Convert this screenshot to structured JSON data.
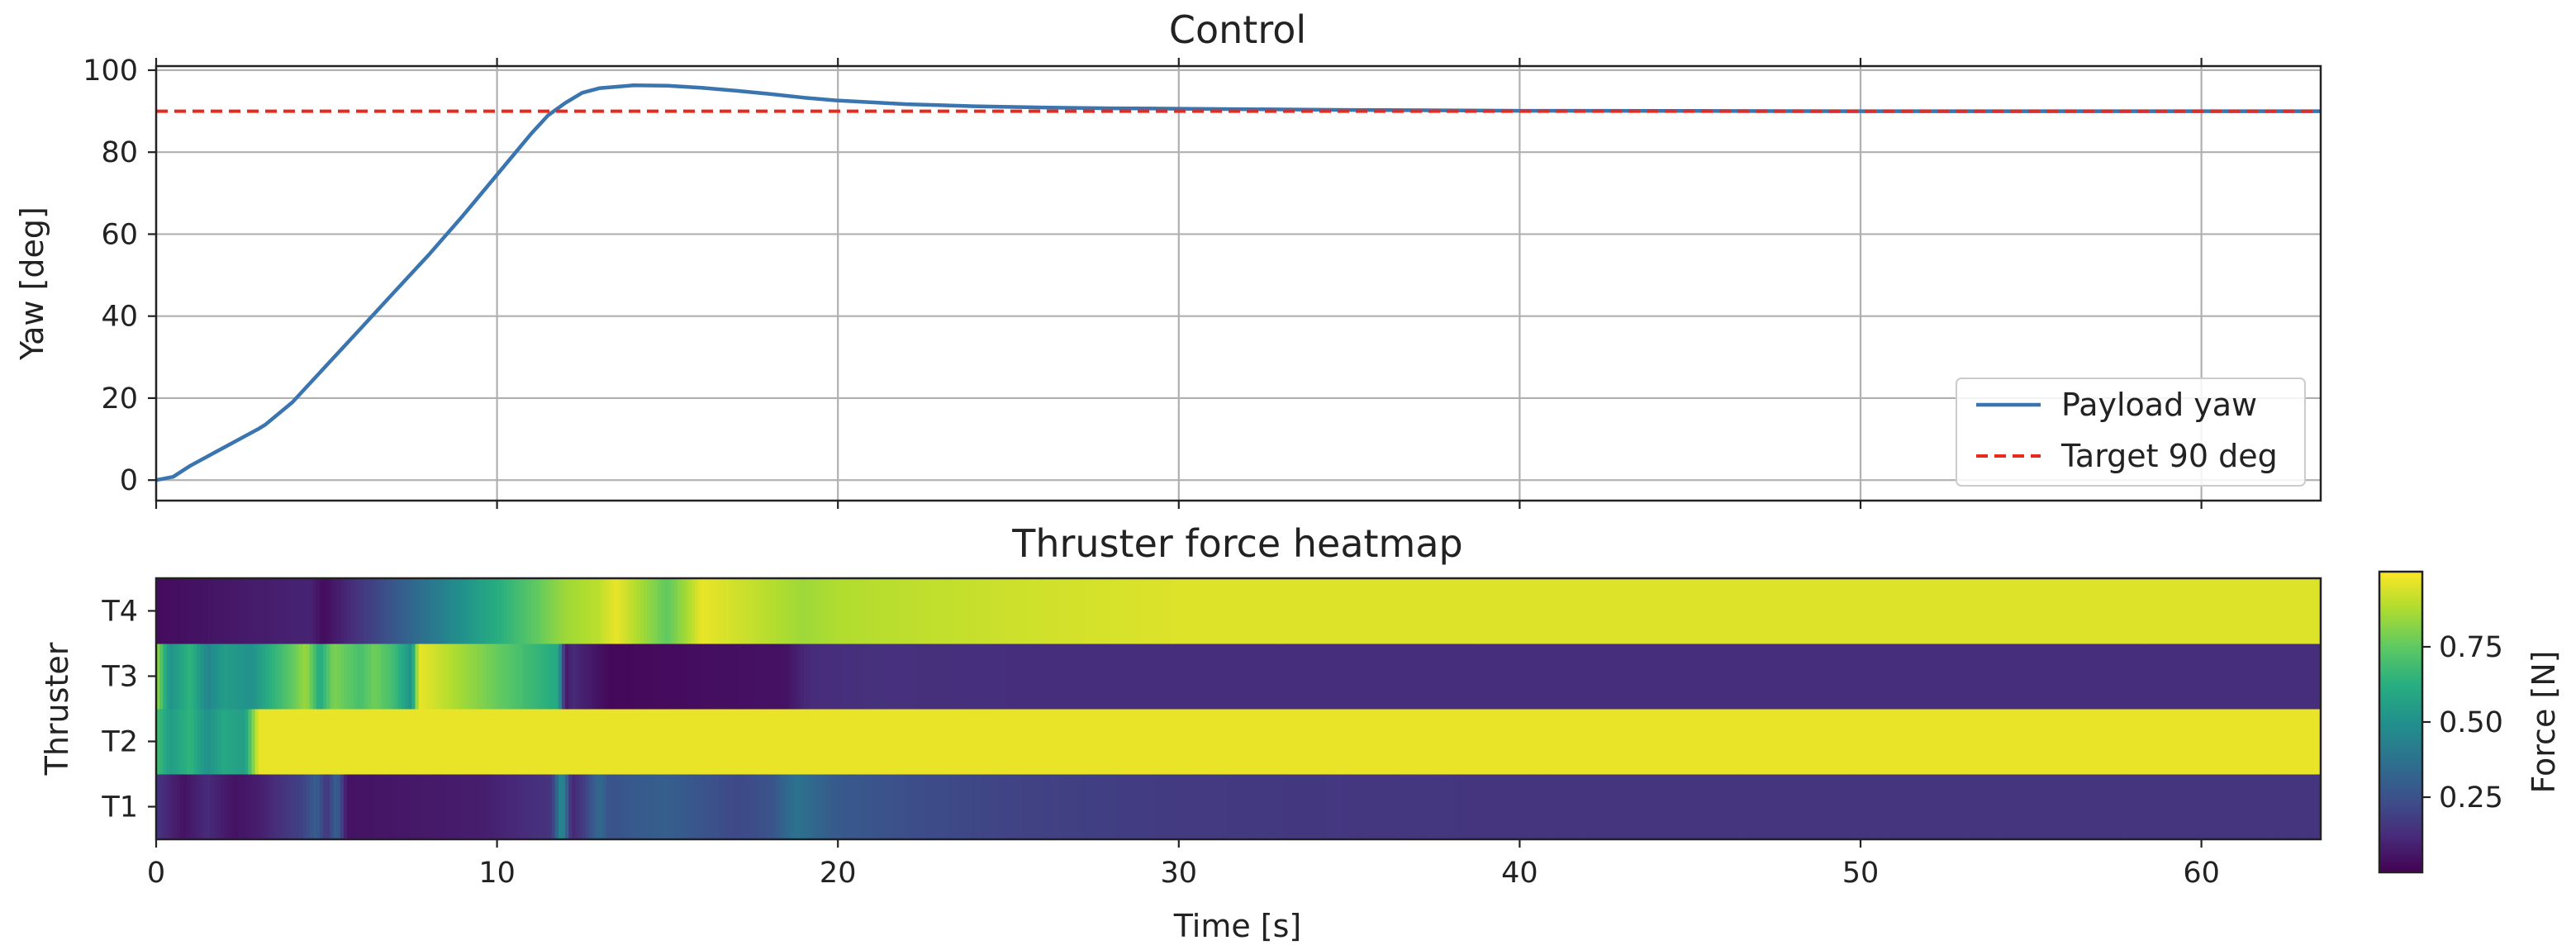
{
  "chart_data": [
    {
      "type": "line",
      "title": "Control",
      "xlabel": "",
      "ylabel": "Yaw [deg]",
      "xlim": [
        0,
        63.5
      ],
      "ylim": [
        -5,
        101
      ],
      "x_ticks": [
        0,
        10,
        20,
        30,
        40,
        50,
        60
      ],
      "y_ticks": [
        0,
        20,
        40,
        60,
        80,
        100
      ],
      "grid": true,
      "legend_position": "lower-right",
      "series": [
        {
          "name": "Payload yaw",
          "color": "#3a75af",
          "style": "solid",
          "x": [
            0,
            0.5,
            1,
            2,
            3,
            3.2,
            4,
            5,
            6,
            7,
            8,
            9,
            10,
            11,
            11.5,
            12,
            12.5,
            13,
            14,
            15,
            16,
            17,
            18,
            19,
            20,
            22,
            24,
            26,
            28,
            30,
            35,
            40,
            45,
            50,
            55,
            60,
            63.5
          ],
          "y": [
            0,
            0.8,
            3.5,
            8,
            12.5,
            13.5,
            19,
            28,
            37,
            46,
            55,
            64.5,
            74.5,
            84.5,
            89,
            92,
            94.5,
            95.6,
            96.3,
            96.2,
            95.7,
            95,
            94.2,
            93.3,
            92.6,
            91.7,
            91.2,
            90.9,
            90.7,
            90.6,
            90.3,
            90.1,
            90.05,
            90,
            90,
            90,
            90
          ]
        },
        {
          "name": "Target 90 deg",
          "color": "#e8291e",
          "style": "dashed",
          "x": [
            0,
            63.5
          ],
          "y": [
            90,
            90
          ]
        }
      ]
    },
    {
      "type": "heatmap",
      "title": "Thruster force heatmap",
      "xlabel": "Time [s]",
      "ylabel": "Thruster",
      "xlim": [
        0,
        63.5
      ],
      "x_ticks": [
        0,
        10,
        20,
        30,
        40,
        50,
        60
      ],
      "rows": [
        "T1",
        "T2",
        "T3",
        "T4"
      ],
      "colormap": "viridis",
      "colorbar": {
        "label": "Force [N]",
        "range": [
          0,
          1
        ],
        "ticks": [
          0.25,
          0.5,
          0.75
        ],
        "tick_labels": [
          "0.25",
          "0.50",
          "0.75"
        ]
      },
      "cell_width_s": 0.1,
      "segments": {
        "T1": [
          [
            0,
            0.15
          ],
          [
            0.8,
            0.05
          ],
          [
            1.5,
            0.12
          ],
          [
            2.3,
            0.05
          ],
          [
            3,
            0.08
          ],
          [
            4.3,
            0.2
          ],
          [
            4.7,
            0.3
          ],
          [
            5,
            0.15
          ],
          [
            5.3,
            0.32
          ],
          [
            5.6,
            0.05
          ],
          [
            9.5,
            0.08
          ],
          [
            11.6,
            0.15
          ],
          [
            11.9,
            0.5
          ],
          [
            12.2,
            0.1
          ],
          [
            12.6,
            0.2
          ],
          [
            13,
            0.35
          ],
          [
            13.3,
            0.25
          ],
          [
            14,
            0.28
          ],
          [
            15,
            0.3
          ],
          [
            16,
            0.26
          ],
          [
            17,
            0.22
          ],
          [
            18,
            0.25
          ],
          [
            18.8,
            0.38
          ],
          [
            19.3,
            0.33
          ],
          [
            20,
            0.28
          ],
          [
            22,
            0.24
          ],
          [
            25,
            0.2
          ],
          [
            30,
            0.17
          ],
          [
            40,
            0.15
          ],
          [
            63.5,
            0.15
          ]
        ],
        "T2": [
          [
            0,
            0.7
          ],
          [
            0.4,
            0.55
          ],
          [
            1,
            0.65
          ],
          [
            1.5,
            0.5
          ],
          [
            2,
            0.6
          ],
          [
            2.6,
            0.55
          ],
          [
            3,
            0.97
          ],
          [
            63.5,
            0.97
          ]
        ],
        "T3": [
          [
            0,
            0.85
          ],
          [
            0.4,
            0.5
          ],
          [
            1,
            0.65
          ],
          [
            1.5,
            0.45
          ],
          [
            2,
            0.55
          ],
          [
            2.8,
            0.5
          ],
          [
            3.3,
            0.62
          ],
          [
            4,
            0.75
          ],
          [
            4.4,
            0.85
          ],
          [
            4.8,
            0.6
          ],
          [
            5.2,
            0.8
          ],
          [
            6,
            0.7
          ],
          [
            6.4,
            0.78
          ],
          [
            7,
            0.68
          ],
          [
            7.5,
            0.5
          ],
          [
            7.7,
            0.97
          ],
          [
            11.8,
            0.6
          ],
          [
            12,
            0.05
          ],
          [
            12.2,
            0.12
          ],
          [
            13.3,
            0.02
          ],
          [
            18.5,
            0.05
          ],
          [
            19.1,
            0.12
          ],
          [
            21,
            0.14
          ],
          [
            25,
            0.13
          ],
          [
            63.5,
            0.13
          ]
        ],
        "T4": [
          [
            0,
            0.03
          ],
          [
            4.5,
            0.1
          ],
          [
            4.9,
            0.03
          ],
          [
            12,
            0.85
          ],
          [
            13,
            0.9
          ],
          [
            13.5,
            0.97
          ],
          [
            14.3,
            0.85
          ],
          [
            15,
            0.75
          ],
          [
            15.5,
            0.85
          ],
          [
            16,
            0.97
          ],
          [
            19,
            0.85
          ],
          [
            20,
            0.88
          ],
          [
            22,
            0.9
          ],
          [
            26,
            0.93
          ],
          [
            30,
            0.95
          ],
          [
            63.5,
            0.95
          ]
        ]
      }
    }
  ]
}
